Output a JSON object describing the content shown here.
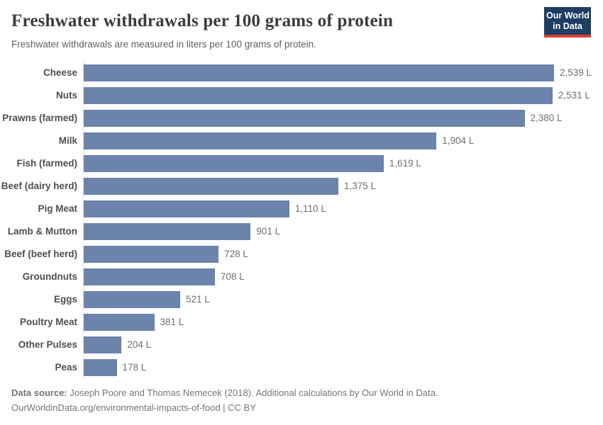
{
  "header": {
    "title": "Freshwater withdrawals per 100 grams of protein",
    "subtitle": "Freshwater withdrawals are measured in liters per 100 grams of protein.",
    "logo": {
      "line1": "Our World",
      "line2": "in Data"
    }
  },
  "chart_data": {
    "type": "bar",
    "orientation": "horizontal",
    "title": "Freshwater withdrawals per 100 grams of protein",
    "subtitle": "Freshwater withdrawals are measured in liters per 100 grams of protein.",
    "unit": "L",
    "xlabel": "",
    "ylabel": "",
    "xlim": [
      0,
      2539
    ],
    "grid": false,
    "legend": false,
    "bar_color": "#6c83ac",
    "axis_line_color": "#dedede",
    "categories": [
      "Cheese",
      "Nuts",
      "Prawns (farmed)",
      "Milk",
      "Fish (farmed)",
      "Beef (dairy herd)",
      "Pig Meat",
      "Lamb & Mutton",
      "Beef (beef herd)",
      "Groundnuts",
      "Eggs",
      "Poultry Meat",
      "Other Pulses",
      "Peas"
    ],
    "values": [
      2539,
      2531,
      2380,
      1904,
      1619,
      1375,
      1110,
      901,
      728,
      708,
      521,
      381,
      204,
      178
    ],
    "value_labels": [
      "2,539 L",
      "2,531 L",
      "2,380 L",
      "1,904 L",
      "1,619 L",
      "1,375 L",
      "1,110 L",
      "901 L",
      "728 L",
      "708 L",
      "521 L",
      "381 L",
      "204 L",
      "178 L"
    ]
  },
  "footer": {
    "source_prefix": "Data source:",
    "source_text": " Joseph Poore and Thomas Nemecek (2018). Additional calculations by Our World in Data.",
    "link_line": "OurWorldinData.org/environmental-impacts-of-food | CC BY"
  },
  "colors": {
    "bar": "#6c83ac",
    "logo_navy": "#1d3d63",
    "logo_red": "#dc3e32",
    "title_text": "#3c3c3c",
    "muted_text": "#757575"
  }
}
